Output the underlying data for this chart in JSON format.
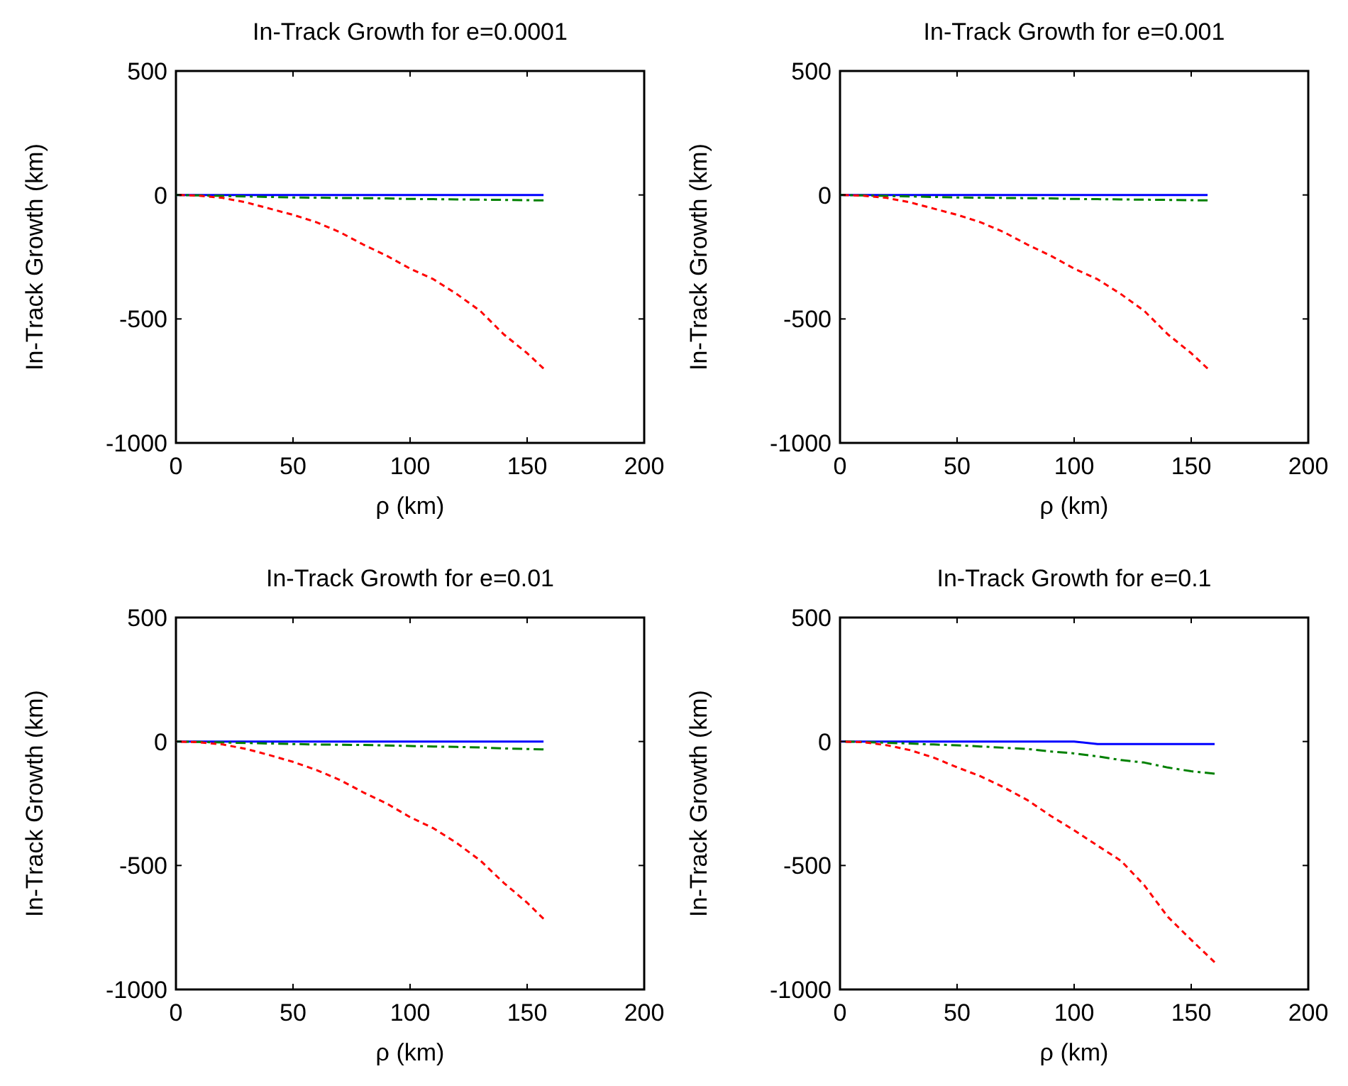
{
  "chart_data": [
    {
      "type": "line",
      "title": "In-Track Growth for e=0.0001",
      "xlabel": "ρ (km)",
      "ylabel": "In-Track Growth (km)",
      "xlim": [
        0,
        200
      ],
      "xticks": [
        0,
        50,
        100,
        150,
        200
      ],
      "ylim": [
        -1000,
        500
      ],
      "yticks": [
        -1000,
        -500,
        0,
        500
      ],
      "grid": false,
      "marker": "none",
      "x": [
        0,
        10,
        20,
        30,
        40,
        50,
        60,
        70,
        80,
        90,
        100,
        110,
        120,
        130,
        140,
        150,
        157
      ],
      "series": [
        {
          "color": "#0000ff",
          "line_style": "solid",
          "values": [
            0,
            0,
            0,
            0,
            0,
            0,
            0,
            0,
            0,
            0,
            0,
            0,
            0,
            0,
            0,
            0,
            0
          ]
        },
        {
          "color": "#008000",
          "line_style": "dashed",
          "values": [
            0,
            -2,
            -4,
            -6,
            -8,
            -10,
            -11,
            -12,
            -13,
            -14,
            -16,
            -17,
            -18,
            -19,
            -20,
            -21,
            -22
          ]
        },
        {
          "color": "#ff0000",
          "line_style": "dotted",
          "values": [
            0,
            -3,
            -12,
            -30,
            -55,
            -80,
            -110,
            -150,
            -200,
            -245,
            -297,
            -340,
            -400,
            -468,
            -562,
            -638,
            -700
          ]
        }
      ]
    },
    {
      "type": "line",
      "title": "In-Track Growth for e=0.001",
      "xlabel": "ρ (km)",
      "ylabel": "In-Track Growth (km)",
      "xlim": [
        0,
        200
      ],
      "xticks": [
        0,
        50,
        100,
        150,
        200
      ],
      "ylim": [
        -1000,
        500
      ],
      "yticks": [
        -1000,
        -500,
        0,
        500
      ],
      "grid": false,
      "marker": "none",
      "x": [
        0,
        10,
        20,
        30,
        40,
        50,
        60,
        70,
        80,
        90,
        100,
        110,
        120,
        130,
        140,
        150,
        157
      ],
      "series": [
        {
          "color": "#0000ff",
          "line_style": "solid",
          "values": [
            0,
            0,
            0,
            0,
            0,
            0,
            0,
            0,
            0,
            0,
            0,
            0,
            0,
            0,
            0,
            0,
            0
          ]
        },
        {
          "color": "#008000",
          "line_style": "dashed",
          "values": [
            0,
            -2,
            -4,
            -6,
            -8,
            -10,
            -11,
            -12,
            -13,
            -14,
            -16,
            -17,
            -18,
            -19,
            -20,
            -21,
            -22
          ]
        },
        {
          "color": "#ff0000",
          "line_style": "dotted",
          "values": [
            0,
            -3,
            -12,
            -30,
            -55,
            -80,
            -110,
            -150,
            -200,
            -245,
            -297,
            -340,
            -400,
            -468,
            -562,
            -638,
            -700
          ]
        }
      ]
    },
    {
      "type": "line",
      "title": "In-Track Growth for e=0.01",
      "xlabel": "ρ (km)",
      "ylabel": "In-Track Growth (km)",
      "xlim": [
        0,
        200
      ],
      "xticks": [
        0,
        50,
        100,
        150,
        200
      ],
      "ylim": [
        -1000,
        500
      ],
      "yticks": [
        -1000,
        -500,
        0,
        500
      ],
      "grid": false,
      "marker": "none",
      "x": [
        0,
        10,
        20,
        30,
        40,
        50,
        60,
        70,
        80,
        90,
        100,
        110,
        120,
        130,
        140,
        150,
        157
      ],
      "series": [
        {
          "color": "#0000ff",
          "line_style": "solid",
          "values": [
            0,
            0,
            0,
            0,
            0,
            0,
            0,
            0,
            0,
            0,
            0,
            0,
            0,
            0,
            0,
            0,
            0
          ]
        },
        {
          "color": "#008000",
          "line_style": "dashed",
          "values": [
            0,
            -2,
            -4,
            -6,
            -8,
            -10,
            -12,
            -13,
            -14,
            -16,
            -18,
            -20,
            -22,
            -24,
            -28,
            -30,
            -32
          ]
        },
        {
          "color": "#ff0000",
          "line_style": "dotted",
          "values": [
            0,
            -3,
            -12,
            -30,
            -55,
            -82,
            -115,
            -155,
            -205,
            -250,
            -305,
            -350,
            -410,
            -480,
            -570,
            -650,
            -715
          ]
        }
      ]
    },
    {
      "type": "line",
      "title": "In-Track Growth for e=0.1",
      "xlabel": "ρ (km)",
      "ylabel": "In-Track Growth (km)",
      "xlim": [
        0,
        200
      ],
      "xticks": [
        0,
        50,
        100,
        150,
        200
      ],
      "ylim": [
        -1000,
        500
      ],
      "yticks": [
        -1000,
        -500,
        0,
        500
      ],
      "grid": false,
      "marker": "none",
      "x": [
        0,
        10,
        20,
        30,
        40,
        50,
        60,
        70,
        80,
        90,
        100,
        110,
        120,
        130,
        140,
        150,
        160
      ],
      "series": [
        {
          "color": "#0000ff",
          "line_style": "solid",
          "values": [
            0,
            0,
            0,
            0,
            0,
            0,
            0,
            0,
            0,
            0,
            0,
            -10,
            -10,
            -10,
            -10,
            -10,
            -10
          ]
        },
        {
          "color": "#008000",
          "line_style": "dashed",
          "values": [
            0,
            -2,
            -5,
            -8,
            -12,
            -15,
            -20,
            -25,
            -30,
            -40,
            -48,
            -60,
            -75,
            -85,
            -105,
            -120,
            -130
          ]
        },
        {
          "color": "#ff0000",
          "line_style": "dotted",
          "values": [
            0,
            -3,
            -15,
            -35,
            -65,
            -104,
            -140,
            -185,
            -236,
            -300,
            -358,
            -420,
            -481,
            -580,
            -707,
            -800,
            -890
          ]
        }
      ]
    }
  ]
}
